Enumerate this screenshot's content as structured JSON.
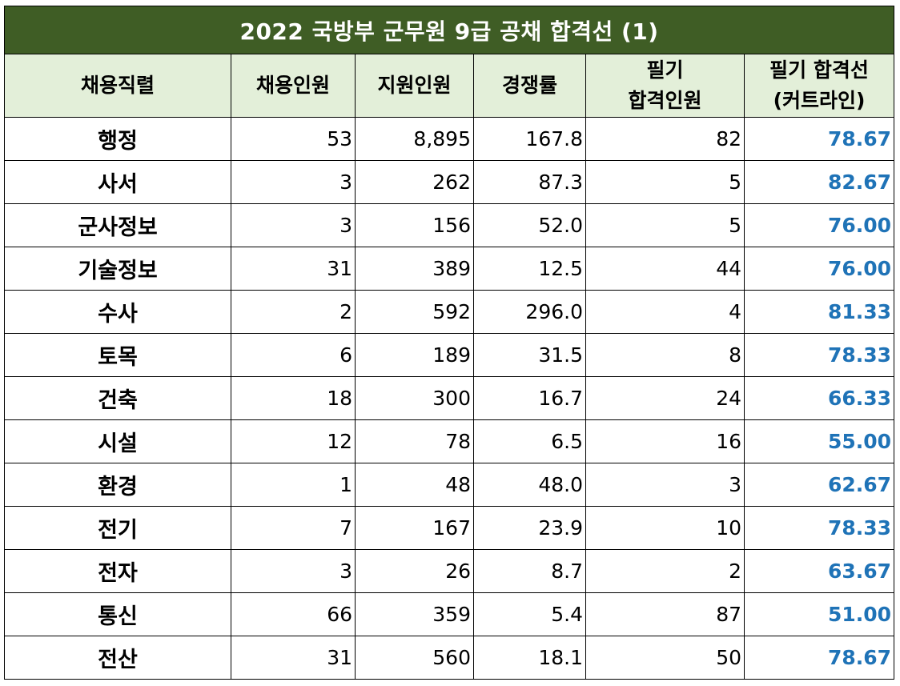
{
  "title": "2022 국방부 군무원 9급 공채  합격선 (1)",
  "headers": [
    [
      "채용직렬"
    ],
    [
      "채용인원"
    ],
    [
      "지원인원"
    ],
    [
      "경쟁률"
    ],
    [
      "필기",
      "합격인원"
    ],
    [
      "필기 합격선",
      "(커트라인)"
    ]
  ],
  "rows": [
    {
      "name": "행정",
      "hire": "53",
      "applicants": "8,895",
      "ratio": "167.8",
      "passed": "82",
      "cutoff": "78.67"
    },
    {
      "name": "사서",
      "hire": "3",
      "applicants": "262",
      "ratio": "87.3",
      "passed": "5",
      "cutoff": "82.67"
    },
    {
      "name": "군사정보",
      "hire": "3",
      "applicants": "156",
      "ratio": "52.0",
      "passed": "5",
      "cutoff": "76.00"
    },
    {
      "name": "기술정보",
      "hire": "31",
      "applicants": "389",
      "ratio": "12.5",
      "passed": "44",
      "cutoff": "76.00"
    },
    {
      "name": "수사",
      "hire": "2",
      "applicants": "592",
      "ratio": "296.0",
      "passed": "4",
      "cutoff": "81.33"
    },
    {
      "name": "토목",
      "hire": "6",
      "applicants": "189",
      "ratio": "31.5",
      "passed": "8",
      "cutoff": "78.33"
    },
    {
      "name": "건축",
      "hire": "18",
      "applicants": "300",
      "ratio": "16.7",
      "passed": "24",
      "cutoff": "66.33"
    },
    {
      "name": "시설",
      "hire": "12",
      "applicants": "78",
      "ratio": "6.5",
      "passed": "16",
      "cutoff": "55.00"
    },
    {
      "name": "환경",
      "hire": "1",
      "applicants": "48",
      "ratio": "48.0",
      "passed": "3",
      "cutoff": "62.67"
    },
    {
      "name": "전기",
      "hire": "7",
      "applicants": "167",
      "ratio": "23.9",
      "passed": "10",
      "cutoff": "78.33"
    },
    {
      "name": "전자",
      "hire": "3",
      "applicants": "26",
      "ratio": "8.7",
      "passed": "2",
      "cutoff": "63.67"
    },
    {
      "name": "통신",
      "hire": "66",
      "applicants": "359",
      "ratio": "5.4",
      "passed": "87",
      "cutoff": "51.00"
    },
    {
      "name": "전산",
      "hire": "31",
      "applicants": "560",
      "ratio": "18.1",
      "passed": "50",
      "cutoff": "78.67"
    }
  ],
  "colors": {
    "title_bg": "#3f5d25",
    "title_text": "#ffffff",
    "header_bg": "#e3efd9",
    "cutoff_text": "#1f73b7",
    "border": "#000000"
  }
}
